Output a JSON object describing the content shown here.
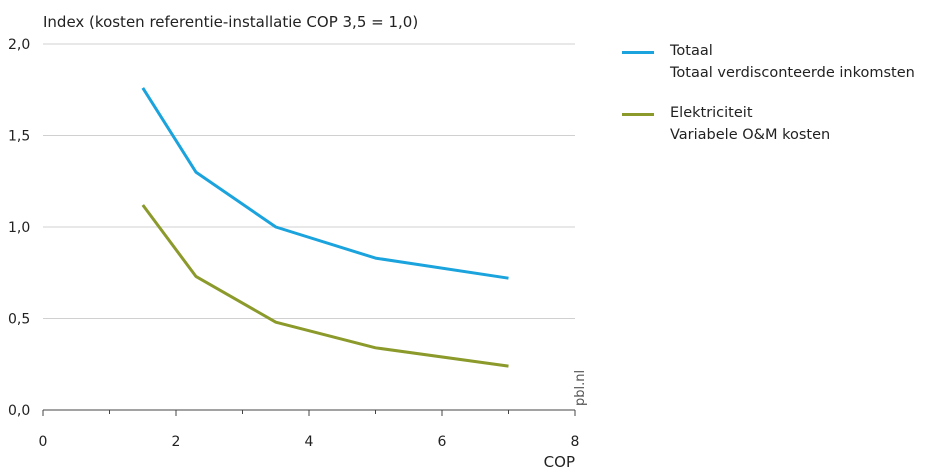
{
  "chart_data": {
    "type": "line",
    "title": "",
    "ylabel": "Index (kosten referentie-installatie COP 3,5 = 1,0)",
    "xlabel": "COP",
    "xlim": [
      0,
      8
    ],
    "ylim": [
      0,
      2
    ],
    "x_ticks": [
      "0",
      "2",
      "4",
      "6",
      "8"
    ],
    "y_ticks": [
      "0,0",
      "0,5",
      "1,0",
      "1,5",
      "2,0"
    ],
    "grid": "horizontal",
    "legend_position": "right",
    "series": [
      {
        "name": "Totaal",
        "legend_sublabel": "Totaal verdisconteerde inkomsten",
        "color": "#1aa3dc",
        "x": [
          1.5,
          2.3,
          3.5,
          5.0,
          7.0
        ],
        "y": [
          1.76,
          1.3,
          1.0,
          0.83,
          0.72
        ]
      },
      {
        "name": "Elektriciteit",
        "legend_sublabel": "Variabele O&M kosten",
        "color": "#8b9a2a",
        "x": [
          1.5,
          2.3,
          3.5,
          5.0,
          7.0
        ],
        "y": [
          1.12,
          0.73,
          0.48,
          0.34,
          0.24
        ]
      }
    ],
    "watermark": "pbl.nl"
  }
}
